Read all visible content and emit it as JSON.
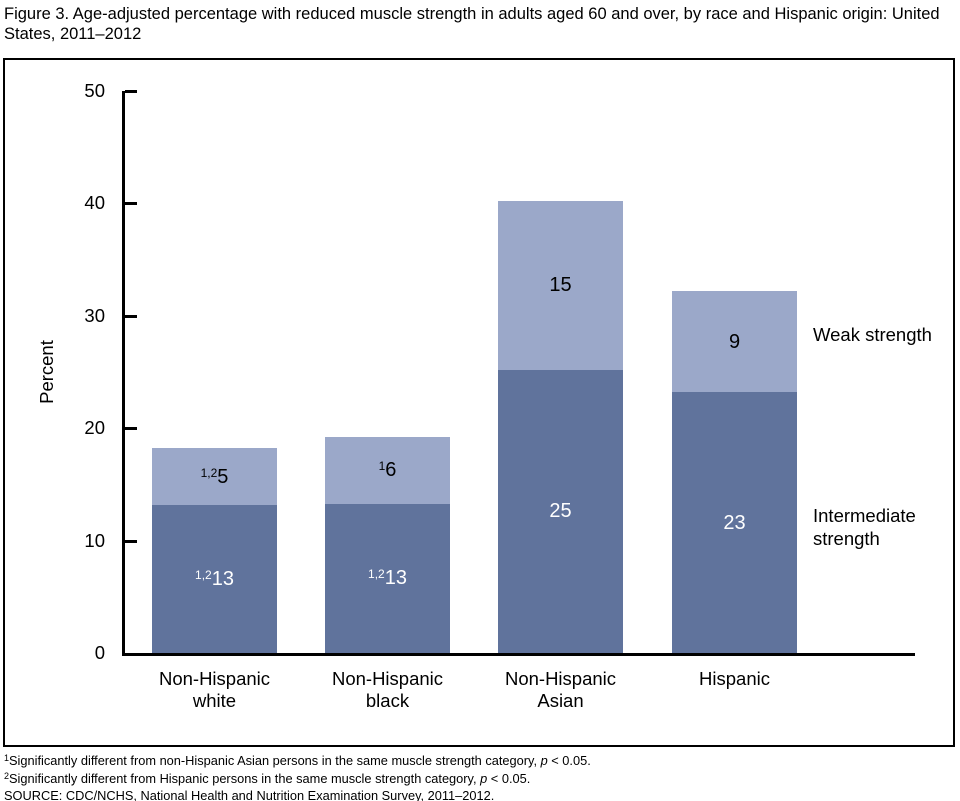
{
  "title": "Figure 3. Age-adjusted percentage with reduced muscle strength in adults aged 60 and over, by race and Hispanic origin: United States, 2011–2012",
  "chart_data": {
    "type": "bar",
    "stacked": true,
    "title": "Figure 3. Age-adjusted percentage with reduced muscle strength in adults aged 60 and over, by race and Hispanic origin: United States, 2011–2012",
    "xlabel": "",
    "ylabel": "Percent",
    "ylim": [
      0,
      50
    ],
    "yticks": [
      0,
      10,
      20,
      30,
      40,
      50
    ],
    "grid": false,
    "legend_position": "right-of-last-bar",
    "categories": [
      "Non-Hispanic white",
      "Non-Hispanic black",
      "Non-Hispanic Asian",
      "Hispanic"
    ],
    "series": [
      {
        "name": "Intermediate strength",
        "color": "#60739c",
        "label_color": "#ffffff",
        "values": [
          13.2,
          13.3,
          25.2,
          23.2
        ],
        "data_labels": [
          {
            "sup": "1,2",
            "text": "13"
          },
          {
            "sup": "1,2",
            "text": "13"
          },
          {
            "sup": "",
            "text": "25"
          },
          {
            "sup": "",
            "text": "23"
          }
        ]
      },
      {
        "name": "Weak strength",
        "color": "#9ba8c9",
        "label_color": "#000000",
        "values": [
          5.0,
          5.9,
          15.0,
          9.0
        ],
        "data_labels": [
          {
            "sup": "1,2",
            "text": "5"
          },
          {
            "sup": "1",
            "text": "6"
          },
          {
            "sup": "",
            "text": "15"
          },
          {
            "sup": "",
            "text": "9"
          }
        ]
      }
    ],
    "side_labels": {
      "weak": "Weak strength",
      "intermediate": "Intermediate strength"
    }
  },
  "axis": {
    "ylabel": "Percent"
  },
  "footnotes": [
    {
      "sup": "1",
      "before_p": "Significantly different from non-Hispanic Asian persons in the same muscle strength category, ",
      "p": "p",
      "after_p": " < 0.05."
    },
    {
      "sup": "2",
      "before_p": "Significantly different from Hispanic persons in the same muscle strength category, ",
      "p": "p",
      "after_p": " < 0.05."
    }
  ],
  "source": "SOURCE: CDC/NCHS, National Health and Nutrition Examination Survey, 2011–2012."
}
